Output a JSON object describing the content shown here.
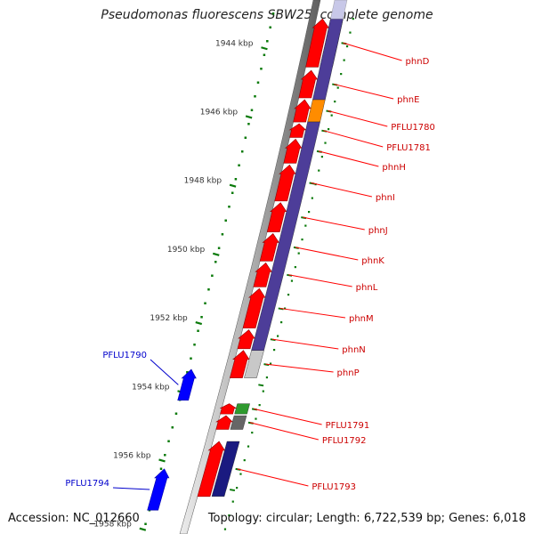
{
  "title": "Pseudomonas fluorescens SBW25, complete genome",
  "footer": {
    "accession_label": "Accession:",
    "accession": "NC_012660",
    "topology_label": "Topology:",
    "topology": "circular;",
    "length_label": "Length:",
    "length": "6,722,539 bp;",
    "genes_label": "Genes:",
    "genes": "6,018"
  },
  "scale_unit": "kbp",
  "ticks": [
    {
      "label": "1944 kbp",
      "kbp": 1944
    },
    {
      "label": "1946 kbp",
      "kbp": 1946
    },
    {
      "label": "1948 kbp",
      "kbp": 1948
    },
    {
      "label": "1950 kbp",
      "kbp": 1950
    },
    {
      "label": "1952 kbp",
      "kbp": 1952
    },
    {
      "label": "1954 kbp",
      "kbp": 1954
    },
    {
      "label": "1956 kbp",
      "kbp": 1956
    },
    {
      "label": "1958 kbp",
      "kbp": 1958
    }
  ],
  "forward_genes": [
    {
      "label": "phnD",
      "start_kbp": 1943.3,
      "end_kbp": 1944.7
    },
    {
      "label": "phnE",
      "start_kbp": 1944.8,
      "end_kbp": 1945.6
    },
    {
      "label": "PFLU1780",
      "start_kbp": 1945.65,
      "end_kbp": 1946.3
    },
    {
      "label": "PFLU1781",
      "start_kbp": 1946.35,
      "end_kbp": 1946.75
    },
    {
      "label": "phnH",
      "start_kbp": 1946.8,
      "end_kbp": 1947.5
    },
    {
      "label": "phnI",
      "start_kbp": 1947.55,
      "end_kbp": 1948.6
    },
    {
      "label": "phnJ",
      "start_kbp": 1948.65,
      "end_kbp": 1949.5
    },
    {
      "label": "phnK",
      "start_kbp": 1949.55,
      "end_kbp": 1950.35
    },
    {
      "label": "phnL",
      "start_kbp": 1950.4,
      "end_kbp": 1951.1
    },
    {
      "label": "phnM",
      "start_kbp": 1951.15,
      "end_kbp": 1952.3
    },
    {
      "label": "phnN",
      "start_kbp": 1952.35,
      "end_kbp": 1952.9
    },
    {
      "label": "phnP",
      "start_kbp": 1952.95,
      "end_kbp": 1953.75
    },
    {
      "label": "PFLU1791",
      "start_kbp": 1954.5,
      "end_kbp": 1954.8
    },
    {
      "label": "PFLU1792",
      "start_kbp": 1954.85,
      "end_kbp": 1955.25
    },
    {
      "label": "PFLU1793",
      "start_kbp": 1955.6,
      "end_kbp": 1957.2
    }
  ],
  "reverse_genes": [
    {
      "label": "PFLU1790",
      "start_kbp": 1953.5,
      "end_kbp": 1954.4
    },
    {
      "label": "PFLU1794",
      "start_kbp": 1956.4,
      "end_kbp": 1957.6
    }
  ],
  "colors": {
    "cds_forward": "#ff0000",
    "cds_reverse": "#0000ff",
    "blast_band": "#4d3d99",
    "blast_orange": "#ff8c00",
    "blast_grey": "#c8c8c8",
    "blast_green": "#2e9a2e",
    "blast_dark": "#1a1a80",
    "tick": "#0a7a0a",
    "label_forward": "#cc0000",
    "label_reverse": "#0000cc",
    "backbone": "#777777"
  }
}
